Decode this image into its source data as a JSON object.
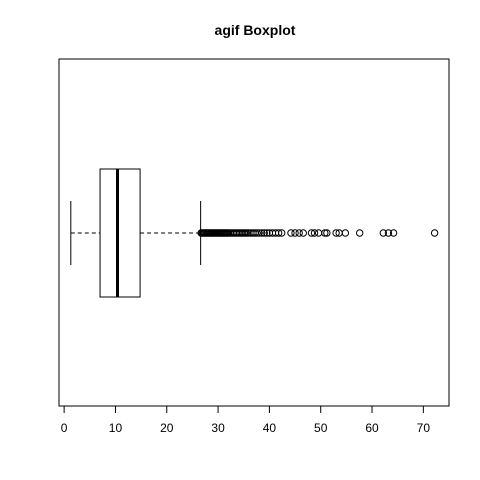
{
  "chart_data": {
    "type": "boxplot",
    "orientation": "horizontal",
    "title": "agif Boxplot",
    "xlabel": "",
    "ylabel": "",
    "xlim": [
      -1,
      75
    ],
    "xticks": [
      0,
      10,
      20,
      30,
      40,
      50,
      60,
      70
    ],
    "grid": false,
    "box": {
      "whisker_low": 1.3,
      "q1": 7.0,
      "median": 10.4,
      "q3": 14.8,
      "whisker_high": 26.6
    },
    "outliers": [
      26.7,
      26.9,
      27.1,
      27.3,
      27.5,
      27.7,
      27.9,
      28.1,
      28.3,
      28.5,
      28.7,
      28.9,
      29.1,
      29.3,
      29.5,
      29.7,
      29.9,
      30.1,
      30.3,
      30.5,
      30.7,
      30.9,
      31.1,
      31.3,
      31.5,
      31.7,
      31.9,
      32.1,
      32.4,
      32.7,
      33.0,
      33.3,
      33.6,
      33.9,
      34.2,
      34.5,
      34.8,
      35.1,
      35.4,
      35.7,
      36.0,
      36.4,
      36.8,
      37.2,
      37.6,
      38.0,
      38.5,
      39.0,
      39.5,
      40.0,
      40.6,
      41.2,
      41.8,
      42.4,
      44.2,
      45.0,
      45.8,
      46.6,
      48.2,
      48.8,
      49.6,
      50.8,
      51.2,
      53.0,
      53.6,
      54.8,
      57.6,
      62.2,
      63.2,
      64.2,
      72.2
    ]
  }
}
